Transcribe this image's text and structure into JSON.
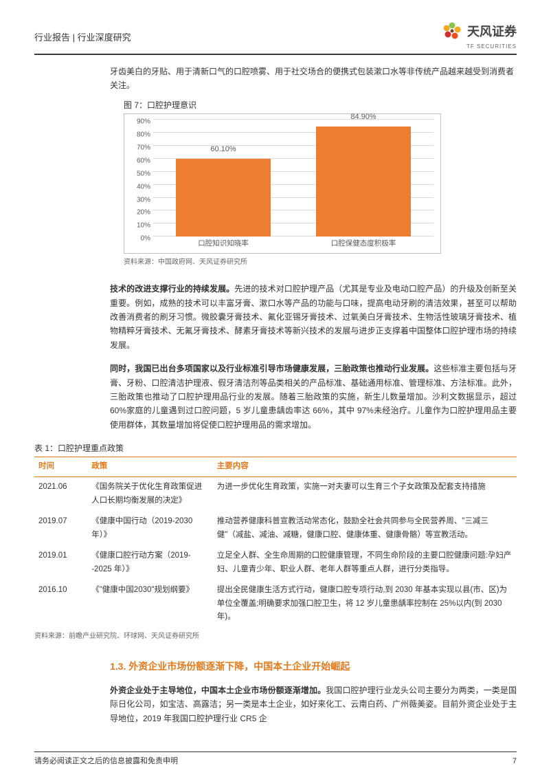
{
  "header": {
    "breadcrumb": "行业报告 | 行业深度研究",
    "logo_cn": "天风证券",
    "logo_en": "TF SECURITIES"
  },
  "intro": "牙齿美白的牙贴、用于清新口气的口腔喷雾、用于社交场合的便携式包装漱口水等非传统产品越来越受到消费者关注。",
  "chart": {
    "caption": "图 7：口腔护理意识",
    "type": "bar",
    "categories": [
      "口腔知识知晓率",
      "口腔保健态度积极率"
    ],
    "values": [
      60.1,
      84.9
    ],
    "value_labels": [
      "60.10%",
      "84.90%"
    ],
    "bar_color": "#ed7d31",
    "ylim": [
      0,
      90
    ],
    "ytick_step": 10,
    "yticks": [
      "0%",
      "10%",
      "20%",
      "30%",
      "40%",
      "50%",
      "60%",
      "70%",
      "80%",
      "90%"
    ],
    "grid_color": "#d9d9d9",
    "border_color": "#bfbfbf",
    "label_fontsize": 10,
    "source": "资料来源：中国政府网、天风证券研究所"
  },
  "para1": {
    "lead": "技术的改进支撑行业的持续发展。",
    "rest": "先进的技术对口腔护理产品（尤其是专业及电动口腔产品）的升级及创新至关重要。例如，成熟的技术可以丰富牙膏、漱口水等产品的功能与口味，提高电动牙刷的清洁效果，甚至可以帮助改善消费者的刷牙习惯。微胶囊牙膏技术、氟化亚锡牙膏技术、过氧美白牙膏技术、生物活性玻璃牙膏技术、植物精粹牙膏技术、无氟牙膏技术、酵素牙膏技术等新兴技术的发展与进步正支撑着中国整体口腔护理市场的持续发展。"
  },
  "para2": {
    "lead": "同时，我国已出台多项国家以及行业标准引导市场健康发展，三胎政策也推动行业发展。",
    "rest": "这些标准主要包括与牙膏、牙粉、口腔清洁护理液、假牙清洁剂等品类相关的产品标准、基础通用标准、管理标准、方法标准。此外，三胎政策也推动了口腔护理用品行业的发展。随着三胎政策的实施，新生儿数量增加。沙利文数据显示，超过 60%家庭的儿童遇到过口腔问题，5 岁儿童患龋齿率达 66%，其中 97%未经治疗。儿童作为口腔护理用品主要使用群体，其数量增加将促使口腔护理用品的需求增加。"
  },
  "table": {
    "caption": "表 1：口腔护理重点政策",
    "columns": [
      "时间",
      "政策",
      "主要内容"
    ],
    "col_widths": [
      "11%",
      "26%",
      "63%"
    ],
    "rows": [
      [
        "2021.06",
        "《国务院关于优化生育政策促进人口长期均衡发展的决定》",
        "为进一步优化生育政策，实施一对夫妻可以生育三个子女政策及配套支持措施"
      ],
      [
        "2019.07",
        "《健康中国行动（2019-2030 年）》",
        "推动营养健康科普宣教活动常态化，鼓励全社会共同参与全民营养周、\"三减三健\"（减盐、减油、减糖，健康口腔、健康体重、健康骨骼）等宣教活动。"
      ],
      [
        "2019.01",
        "《健康口腔行动方案（2019- -2025 年）》",
        "立足全人群、全生命周期的口腔健康管理，不同生命阶段的主要口腔健康问题:孕妇产妇、儿童青少年、职业人群、老年人群等重点人群，进行分类指导。"
      ],
      [
        "2016.10",
        "《\"健康中国2030\"规划纲要》",
        "提出全民健康生活方式行动，健康口腔专项行动,到 2030 年基本实现以县(市、区)为单位全覆盖;明确要求加强口腔卫生，将 12 岁儿童患龋率控制在 25%以内(到 2030 年)。"
      ]
    ],
    "header_color": "#e27a1e",
    "source": "资料来源：前瞻产业研究院、环球网、天风证券研究所"
  },
  "section_heading": "1.3. 外资企业市场份额逐渐下降，中国本土企业开始崛起",
  "para3": {
    "lead": "外资企业处于主导地位，中国本土企业市场份额逐渐增加。",
    "rest": "我国口腔护理行业龙头公司主要分为两类，一类是国际日化公司，如宝洁、高露洁；另一类是本土企业，如好来化工、云南白药、广州薇美姿。目前外资企业处于主导地位，2019 年我国口腔护理行业 CR5 企"
  },
  "footer": {
    "disclaimer": "请务必阅读正文之后的信息披露和免责申明",
    "page": "7"
  },
  "logo_colors": {
    "petal1": "#8bc34a",
    "petal2": "#f5a623",
    "petal3": "#e94e1b",
    "petal4": "#d32f2f",
    "center": "#6b4a2a"
  }
}
